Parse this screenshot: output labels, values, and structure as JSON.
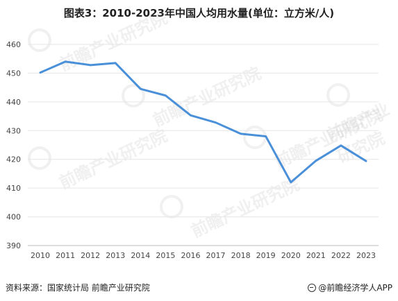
{
  "title": "图表3：2010-2023年中国人均用水量(单位：立方米/人)",
  "source": "资料来源：国家统计局 前瞻产业研究院",
  "brand": "@前瞻经济学人APP",
  "watermark_text": "前瞻产业研究院",
  "colors": {
    "line": "#4a90d9",
    "grid": "#e6e6e6",
    "axis": "#bbbbbb"
  },
  "chart_data": {
    "type": "line",
    "title": "图表3：2010-2023年中国人均用水量(单位：立方米/人)",
    "x": [
      "2010",
      "2011",
      "2012",
      "2013",
      "2014",
      "2015",
      "2016",
      "2017",
      "2018",
      "2019",
      "2020",
      "2021",
      "2022",
      "2023"
    ],
    "series": [
      {
        "values": [
          450.2,
          454.0,
          452.8,
          453.5,
          444.5,
          442.2,
          435.3,
          432.8,
          428.9,
          428.0,
          412.0,
          419.5,
          424.8,
          419.4
        ]
      }
    ],
    "ylim": [
      390,
      460
    ],
    "yticks": [
      390,
      400,
      410,
      420,
      430,
      440,
      450,
      460
    ],
    "grid": "horizontal",
    "legend": "none"
  }
}
